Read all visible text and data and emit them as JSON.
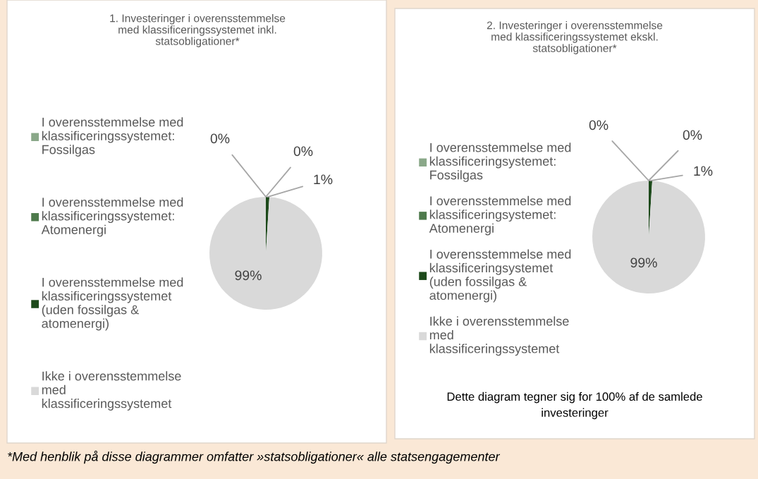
{
  "chart_data": [
    {
      "type": "pie",
      "title": "1. Investeringer i overensstemmelse\nmed klassificeringssystemet inkl.\nstatsobligationer*",
      "categories": [
        "I overensstemmelse med\nklassificeringssystemet:\nFossilgas",
        "I overensstemmelse med\nklassificeringssystemet:\nAtomenergi",
        "I overensstemmelse med\nklassificeringssystemet\n(uden fossilgas &\natomenergi)",
        "Ikke i overensstemmelse\nmed\nklassificeringssystemet"
      ],
      "values": [
        0,
        0,
        1,
        99
      ],
      "colors": [
        "#8aa889",
        "#4e7a4c",
        "#1d4a1b",
        "#d9d9d9"
      ],
      "value_labels": [
        "0%",
        "0%",
        "1%",
        "99%"
      ],
      "legend": "left",
      "annotations": [
        "*Med henblik på disse diagrammer omfatter »statsobligationer« alle statsengagementer"
      ]
    },
    {
      "type": "pie",
      "title": "2. Investeringer i overensstemmelse\nmed klassificeringssystemet ekskl.\nstatsobligationer*",
      "categories": [
        "I overensstemmelse med\nklassificeringsystemet:\nFossilgas",
        "I overensstemmelse med\nklassificeringsystemet:\nAtomenergi",
        "I overensstemmelse med\nklassificeringsystemet\n(uden fossilgas &\natomenergi)",
        "Ikke i overensstemmelse\nmed\nklassificeringssystemet"
      ],
      "values": [
        0,
        0,
        1,
        99
      ],
      "colors": [
        "#8aa889",
        "#4e7a4c",
        "#1d4a1b",
        "#d9d9d9"
      ],
      "value_labels": [
        "0%",
        "0%",
        "1%",
        "99%"
      ],
      "legend": "left",
      "annotations": [
        "Dette diagram tegner sig for 100% af de samlede\ninvesteringer"
      ]
    }
  ]
}
